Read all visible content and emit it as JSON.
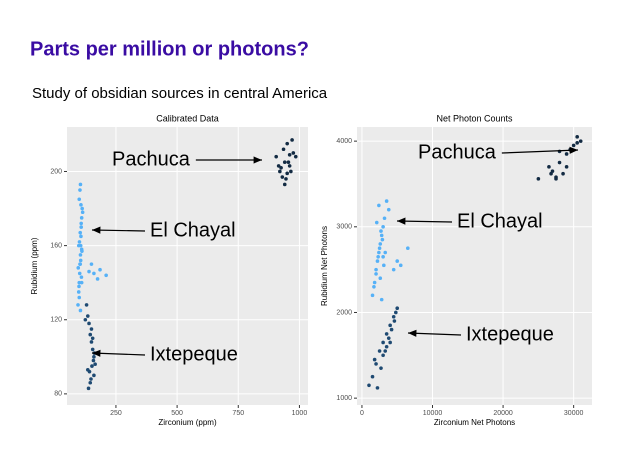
{
  "title": "Parts per million or photons?",
  "subtitle": "Study of obsidian sources in central America",
  "chart_data": [
    {
      "type": "scatter",
      "title": "Calibrated Data",
      "x_label": "Zirconium (ppm)",
      "y_label": "Rubidium (ppm)",
      "xlim": [
        50,
        1035
      ],
      "ylim": [
        74,
        224
      ],
      "xticks": [
        250,
        500,
        750,
        1000
      ],
      "yticks": [
        80,
        120,
        160,
        200
      ],
      "grid": true,
      "series": [
        {
          "name": "Pachuca",
          "color": "#132b43",
          "x": [
            905,
            915,
            920,
            930,
            935,
            940,
            945,
            950,
            955,
            960,
            965,
            970,
            975,
            940,
            925,
            950,
            960,
            985
          ],
          "values": [
            208,
            203,
            200,
            197,
            212,
            205,
            196,
            215,
            205,
            209,
            200,
            217,
            210,
            193,
            202,
            199,
            203,
            208
          ]
        },
        {
          "name": "El Chayal",
          "color": "#56b1f7",
          "x": [
            95,
            98,
            100,
            102,
            104,
            105,
            106,
            107,
            108,
            110,
            112,
            100,
            103,
            105,
            108,
            110,
            96,
            99,
            101,
            104,
            106,
            109,
            111,
            114,
            100,
            105,
            107,
            103,
            98,
            110,
            160,
            175,
            185,
            210,
            150,
            140
          ],
          "values": [
            128,
            135,
            140,
            145,
            150,
            155,
            160,
            165,
            170,
            175,
            180,
            185,
            190,
            193,
            172,
            158,
            148,
            138,
            162,
            167,
            152,
            143,
            157,
            178,
            132,
            125,
            182,
            150,
            160,
            140,
            145,
            142,
            147,
            144,
            150,
            146
          ]
        },
        {
          "name": "Ixtepeque",
          "color": "#1f4a72",
          "x": [
            130,
            135,
            140,
            145,
            150,
            155,
            160,
            165,
            142,
            148,
            152,
            158,
            162,
            138,
            145,
            150,
            155,
            125,
            135,
            160
          ],
          "values": [
            128,
            122,
            118,
            112,
            108,
            104,
            100,
            96,
            92,
            88,
            95,
            98,
            102,
            83,
            86,
            115,
            110,
            120,
            93,
            90
          ]
        }
      ]
    },
    {
      "type": "scatter",
      "title": "Net Photon Counts",
      "x_label": "Zirconium Net Photons",
      "y_label": "Rubidium Net Photons",
      "xlim": [
        -700,
        32600
      ],
      "ylim": [
        920,
        4165
      ],
      "xticks": [
        0,
        10000,
        20000,
        30000
      ],
      "yticks": [
        1000,
        2000,
        3000,
        4000
      ],
      "grid": true,
      "series": [
        {
          "name": "Pachuca",
          "color": "#132b43",
          "x": [
            25000,
            26500,
            27000,
            27500,
            28000,
            28500,
            29000,
            29500,
            30000,
            30500,
            31000,
            28000,
            27500,
            29000,
            30500,
            26800
          ],
          "values": [
            3560,
            3700,
            3650,
            3580,
            3750,
            3620,
            3850,
            3900,
            3950,
            4050,
            4000,
            3880,
            3560,
            3700,
            3980,
            3620
          ]
        },
        {
          "name": "El Chayal",
          "color": "#56b1f7",
          "x": [
            1500,
            1800,
            2000,
            2200,
            2400,
            2600,
            2800,
            3000,
            3200,
            3500,
            3800,
            2000,
            2300,
            2500,
            2700,
            2900,
            3100,
            1700,
            2100,
            2600,
            3300,
            5000,
            5500,
            6500,
            4500,
            2400,
            2800,
            3000
          ],
          "values": [
            2200,
            2350,
            2500,
            2600,
            2700,
            2800,
            2900,
            3000,
            3100,
            3300,
            3200,
            2450,
            2650,
            2750,
            2950,
            2850,
            2550,
            2300,
            3050,
            2400,
            2700,
            2600,
            2550,
            2750,
            2500,
            3250,
            2150,
            2650
          ]
        },
        {
          "name": "Ixtepeque",
          "color": "#1f4a72",
          "x": [
            1000,
            1500,
            2000,
            2500,
            3000,
            3500,
            4000,
            4500,
            5000,
            3500,
            3800,
            4200,
            4600,
            2700,
            3000,
            1800,
            2200,
            4000,
            3300,
            4800
          ],
          "values": [
            1150,
            1250,
            1400,
            1550,
            1650,
            1750,
            1850,
            1950,
            2050,
            1600,
            1700,
            1800,
            1900,
            1350,
            1500,
            1450,
            1120,
            1650,
            1550,
            2000
          ]
        }
      ]
    }
  ]
}
